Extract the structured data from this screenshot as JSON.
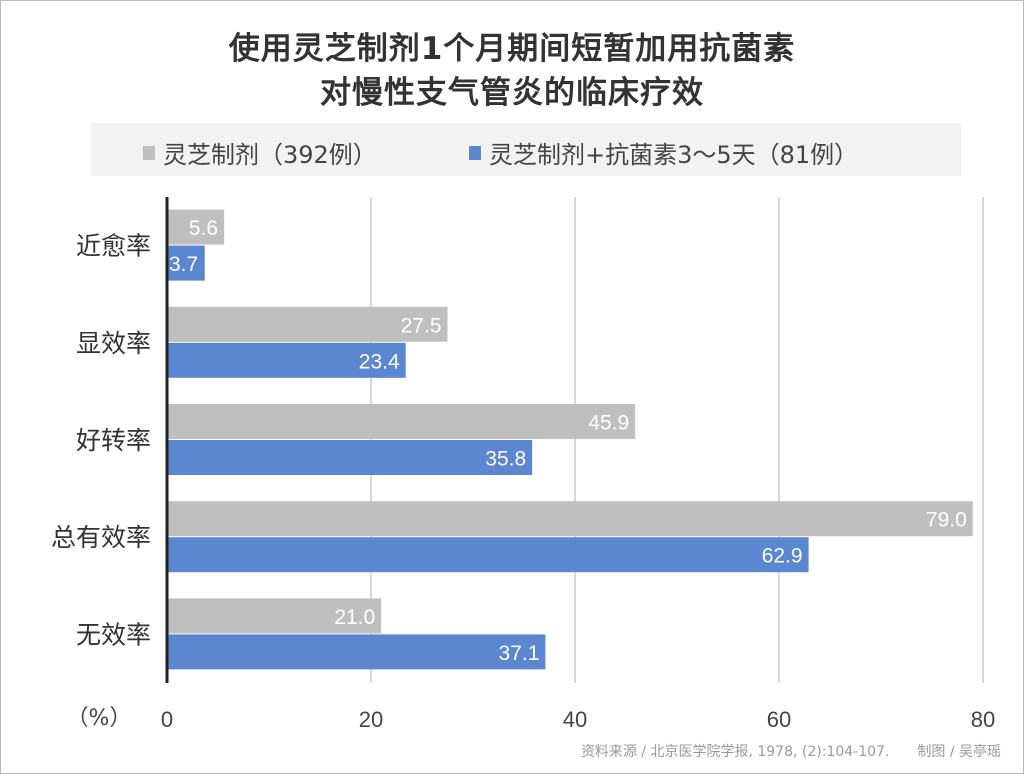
{
  "chart_data": {
    "type": "bar",
    "orientation": "horizontal",
    "title": [
      "使用灵芝制剂1个月期间短暂加用抗菌素",
      "对慢性支气管炎的临床疗效"
    ],
    "categories": [
      "近愈率",
      "显效率",
      "好转率",
      "总有效率",
      "无效率"
    ],
    "series": [
      {
        "name": "灵芝制剂（392例）",
        "color": "#bfbfbf",
        "values": [
          5.6,
          27.5,
          45.9,
          79.0,
          21.0
        ]
      },
      {
        "name": "灵芝制剂+抗菌素3～5天（81例）",
        "color": "#5b86d0",
        "values": [
          3.7,
          23.4,
          35.8,
          62.9,
          37.1
        ]
      }
    ],
    "xlabel": "（%）",
    "xlim": [
      0,
      80
    ],
    "xticks": [
      "0",
      "20",
      "40",
      "60",
      "80"
    ],
    "grid": true,
    "legend": "top"
  },
  "footer": {
    "source": "资料来源 / 北京医学院学报, 1978, (2):104-107.",
    "author": "制图 / 吴亭瑶"
  }
}
